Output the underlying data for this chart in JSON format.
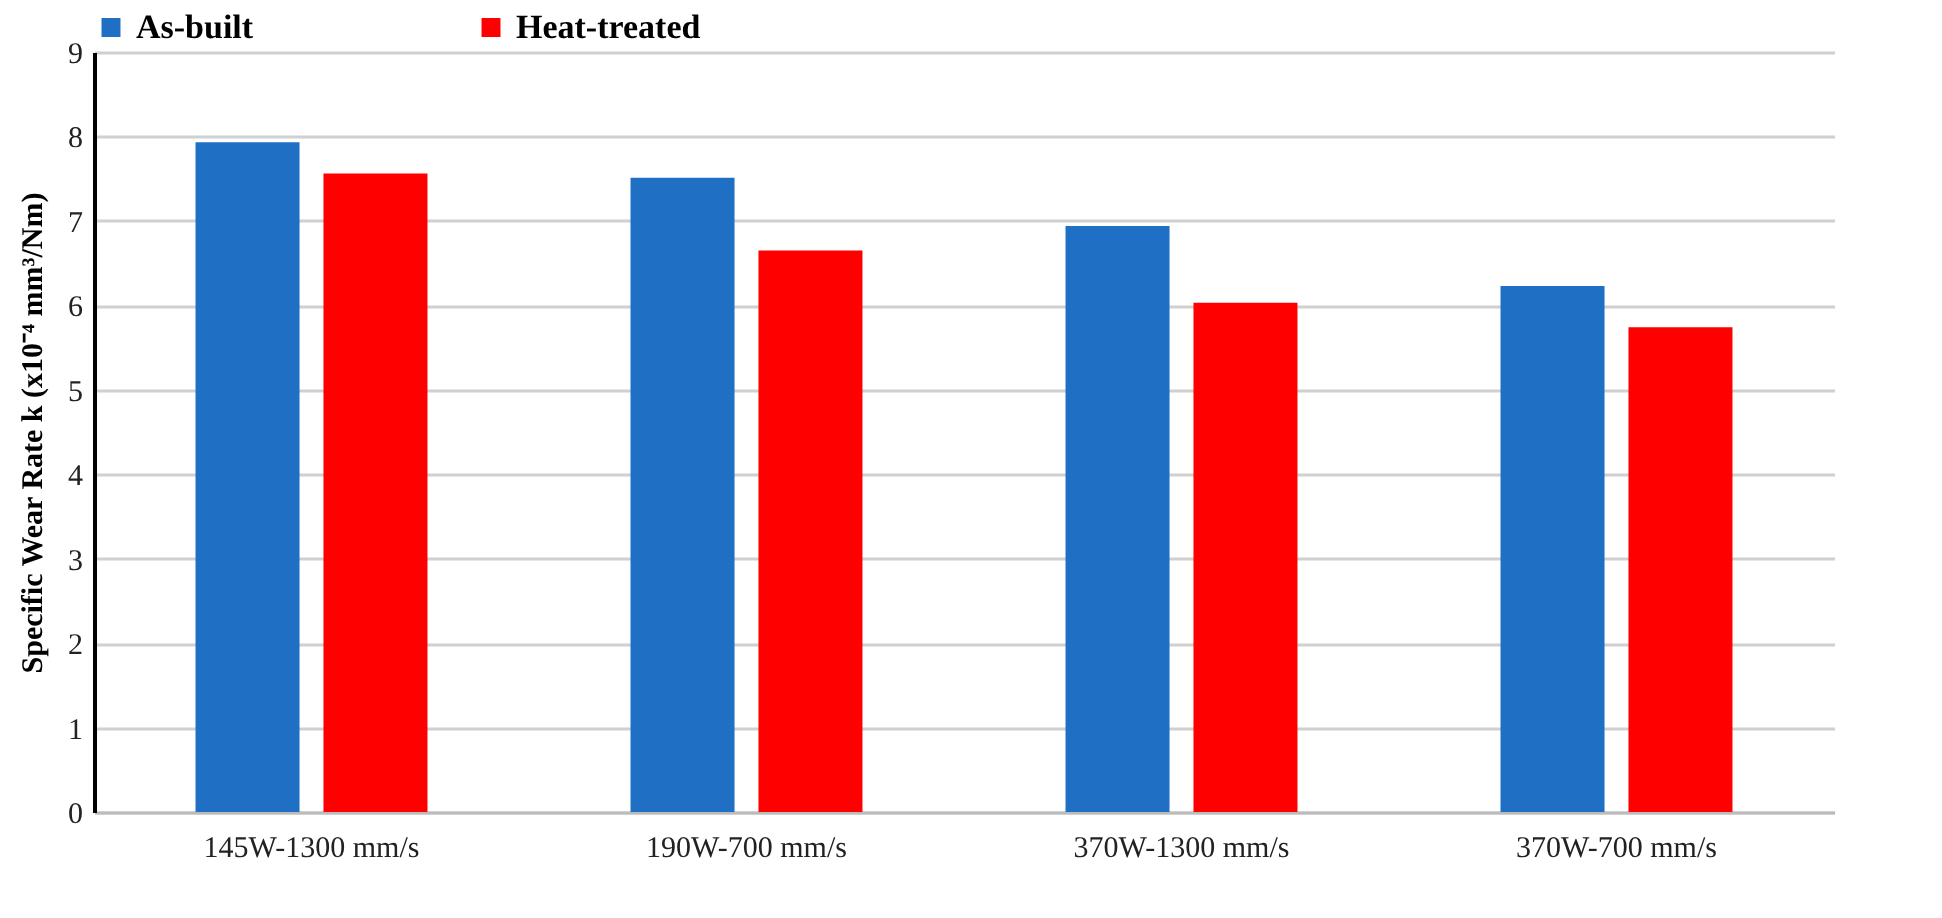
{
  "chart_data": {
    "type": "bar",
    "ylabel": "Specific Wear Rate k (x10⁻⁴ mm³/Nm)",
    "categories": [
      "145W-1300 mm/s",
      "190W-700 mm/s",
      "370W-1300 mm/s",
      "370W-700 mm/s"
    ],
    "series": [
      {
        "name": "As-built",
        "color": "#1f6fc5",
        "values": [
          7.93,
          7.51,
          6.94,
          6.23
        ]
      },
      {
        "name": "Heat-treated",
        "color": "#ff0000",
        "values": [
          7.56,
          6.65,
          6.03,
          5.74
        ]
      }
    ],
    "ylim": [
      0,
      9
    ],
    "yticks": [
      0,
      1,
      2,
      3,
      4,
      5,
      6,
      7,
      8,
      9
    ],
    "grid": "y",
    "legend": "top"
  }
}
